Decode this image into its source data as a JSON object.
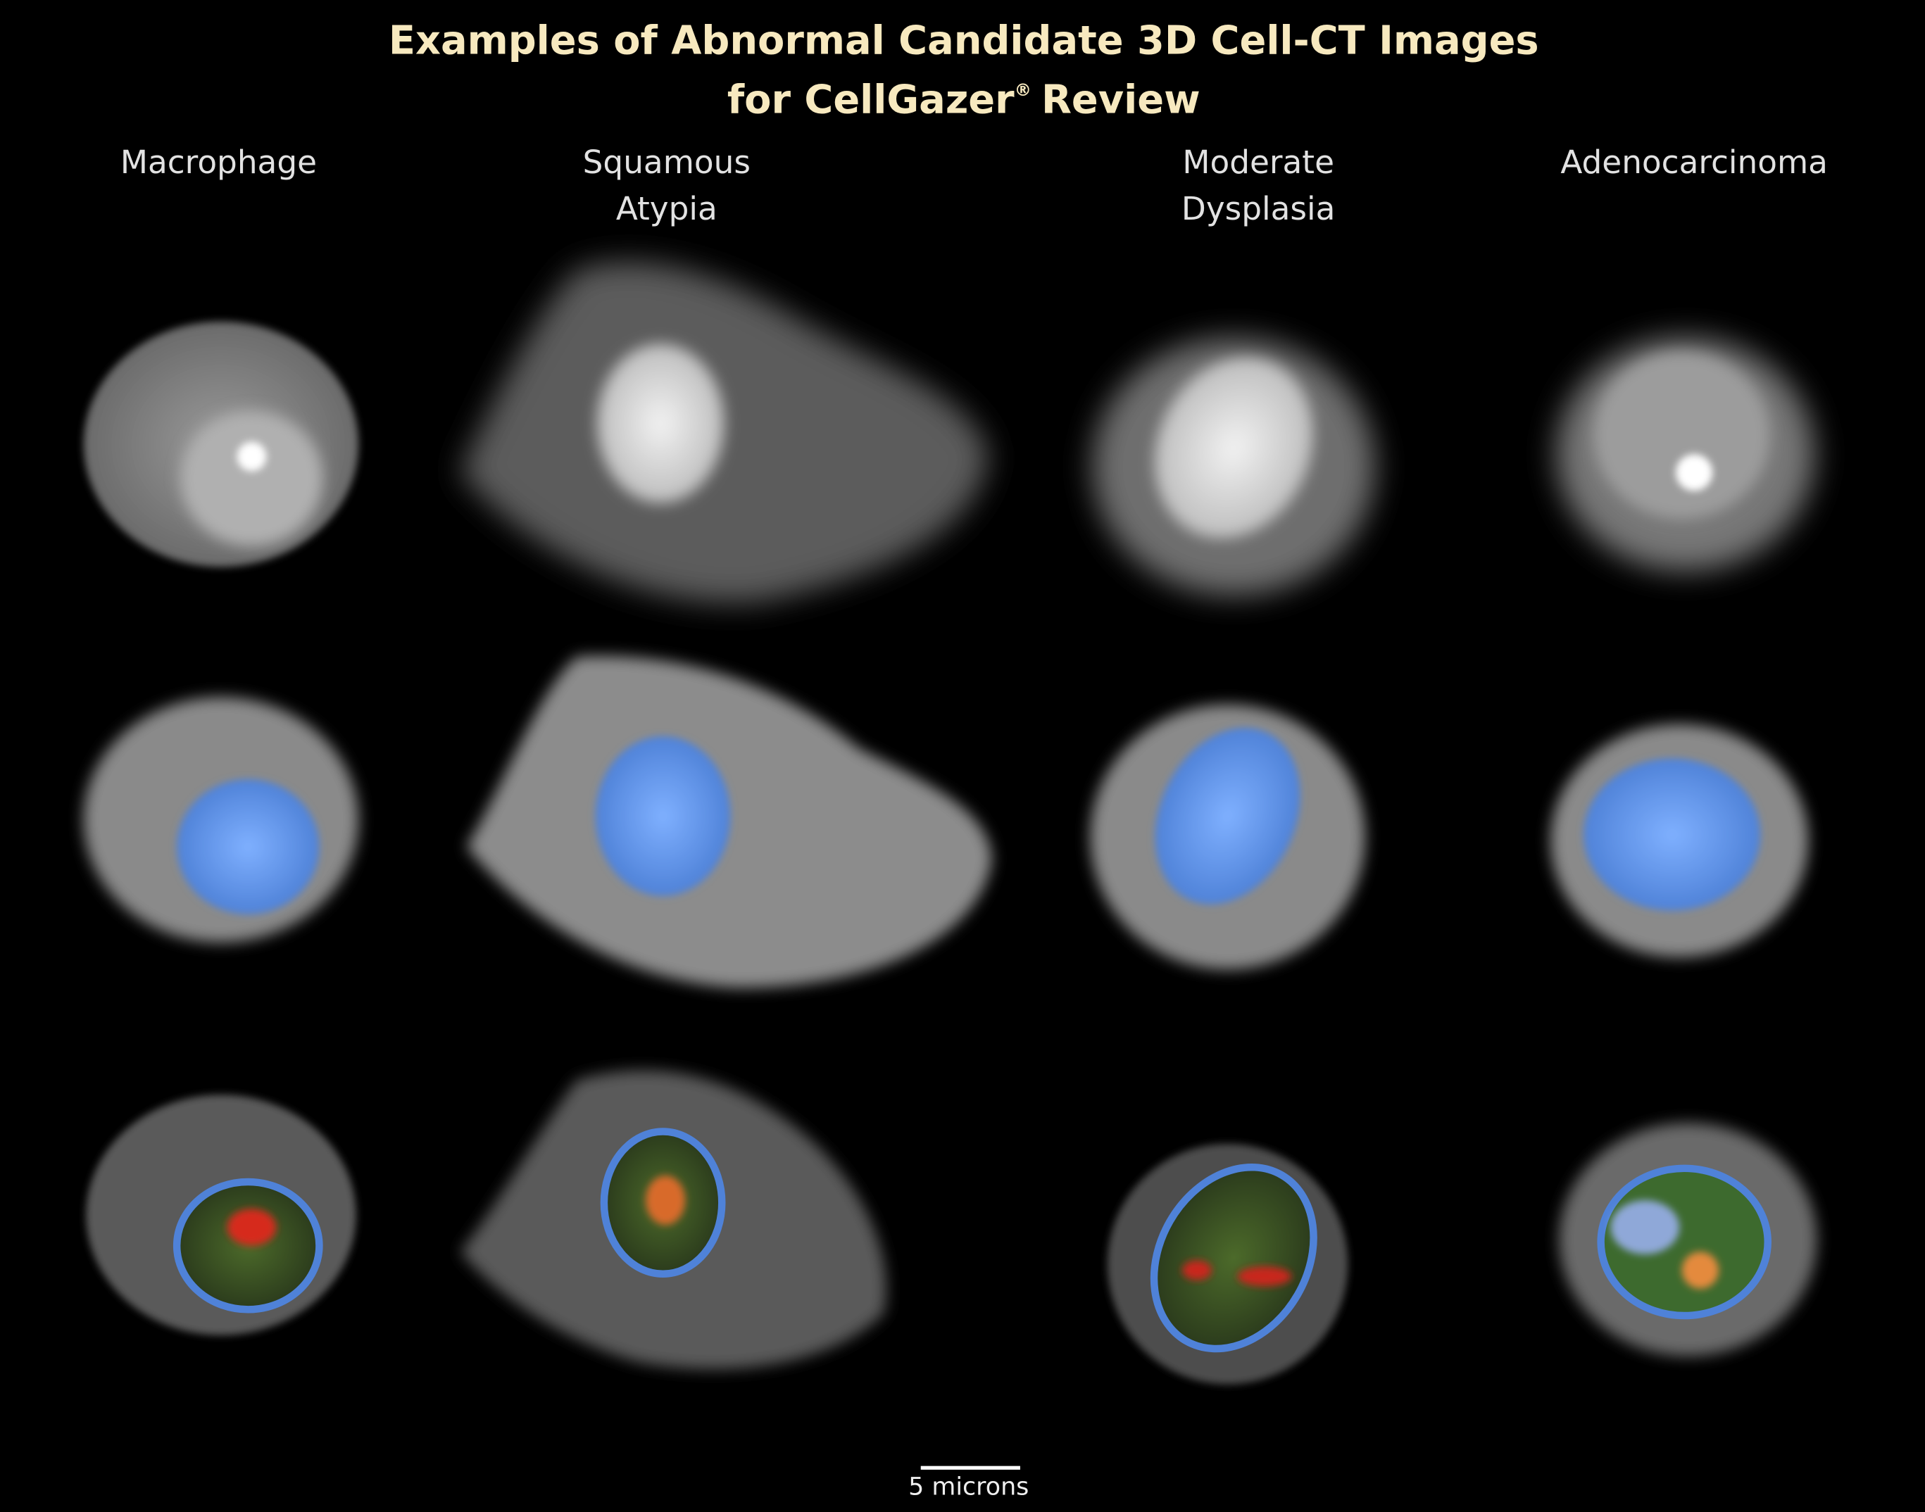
{
  "title_line_1": "Examples of Abnormal Candidate 3D Cell-CT Images",
  "title_line_2": {
    "prefix": "for CellGazer",
    "mark": "®",
    "suffix": "Review"
  },
  "columns": [
    {
      "lines": [
        "Macrophage"
      ]
    },
    {
      "lines": [
        "Squamous",
        "Atypia"
      ]
    },
    {
      "lines": [
        "Moderate",
        "Dysplasia"
      ]
    },
    {
      "lines": [
        "Adenocarcinoma"
      ]
    }
  ],
  "scale_bar": "5 microns"
}
